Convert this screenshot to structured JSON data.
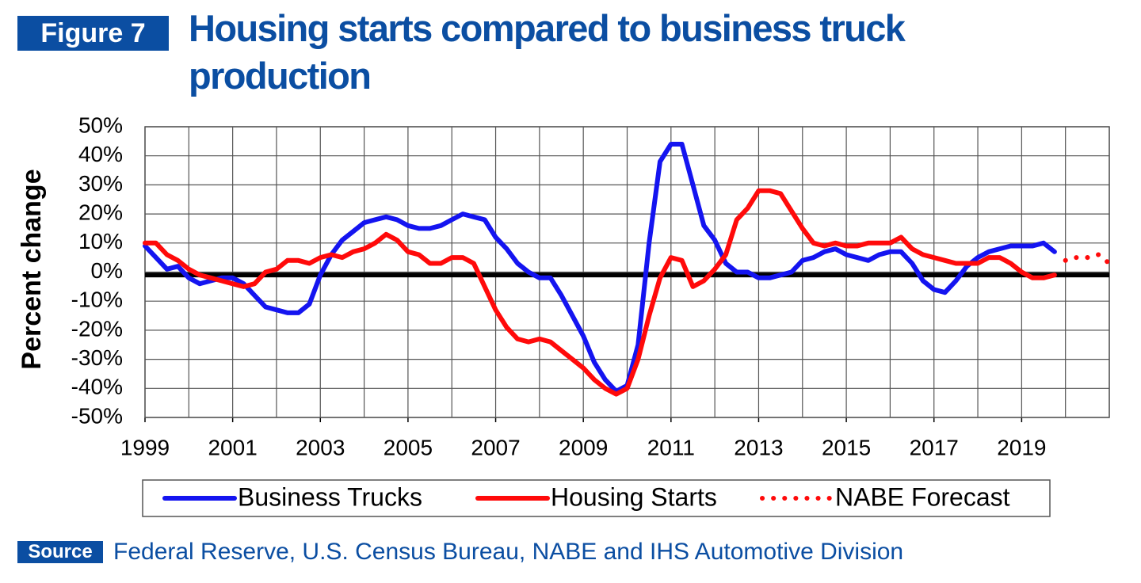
{
  "figure_label": "Figure 7",
  "chart_data": {
    "type": "line",
    "title": "Housing starts compared to business truck production",
    "ylabel": "Percent change",
    "xlim": [
      1999,
      2021
    ],
    "xticks": [
      1999,
      2001,
      2003,
      2005,
      2007,
      2009,
      2011,
      2013,
      2015,
      2017,
      2019
    ],
    "xminorticks": [
      2000,
      2002,
      2004,
      2006,
      2008,
      2010,
      2012,
      2014,
      2016,
      2018,
      2020,
      2021
    ],
    "ylim": [
      -50,
      50
    ],
    "yticks": [
      {
        "value": -50,
        "label": "-50%"
      },
      {
        "value": -40,
        "label": "-40%"
      },
      {
        "value": -30,
        "label": "-30%"
      },
      {
        "value": -20,
        "label": "-20%"
      },
      {
        "value": -10,
        "label": "-10%"
      },
      {
        "value": 0,
        "label": "0%"
      },
      {
        "value": 10,
        "label": "10%"
      },
      {
        "value": 20,
        "label": "20%"
      },
      {
        "value": 30,
        "label": "30%"
      },
      {
        "value": 40,
        "label": "40%"
      },
      {
        "value": 50,
        "label": "50%"
      }
    ],
    "grid": true,
    "hline": -1,
    "legend": "bottom",
    "series": [
      {
        "name": "Business Trucks",
        "color": "#1414f0",
        "style": "solid",
        "x": [
          1999,
          1999.25,
          1999.5,
          1999.75,
          2000,
          2000.25,
          2000.5,
          2000.75,
          2001,
          2001.25,
          2001.5,
          2001.75,
          2002,
          2002.25,
          2002.5,
          2002.75,
          2003,
          2003.25,
          2003.5,
          2003.75,
          2004,
          2004.25,
          2004.5,
          2004.75,
          2005,
          2005.25,
          2005.5,
          2005.75,
          2006,
          2006.25,
          2006.5,
          2006.75,
          2007,
          2007.25,
          2007.5,
          2007.75,
          2008,
          2008.25,
          2008.5,
          2008.75,
          2009,
          2009.25,
          2009.5,
          2009.75,
          2010,
          2010.25,
          2010.5,
          2010.75,
          2011,
          2011.25,
          2011.5,
          2011.75,
          2012,
          2012.25,
          2012.5,
          2012.75,
          2013,
          2013.25,
          2013.5,
          2013.75,
          2014,
          2014.25,
          2014.5,
          2014.75,
          2015,
          2015.25,
          2015.5,
          2015.75,
          2016,
          2016.25,
          2016.5,
          2016.75,
          2017,
          2017.25,
          2017.5,
          2017.75,
          2018,
          2018.25,
          2018.5,
          2018.75,
          2019,
          2019.25,
          2019.5,
          2019.75
        ],
        "values": [
          9,
          5,
          1,
          2,
          -2,
          -4,
          -3,
          -2,
          -2,
          -4,
          -8,
          -12,
          -13,
          -14,
          -14,
          -11,
          -1,
          6,
          11,
          14,
          17,
          18,
          19,
          18,
          16,
          15,
          15,
          16,
          18,
          20,
          19,
          18,
          12,
          8,
          3,
          0,
          -2,
          -2,
          -8,
          -15,
          -22,
          -31,
          -37,
          -41,
          -39,
          -25,
          10,
          38,
          44,
          44,
          30,
          16,
          11,
          3,
          0,
          0,
          -2,
          -2,
          -1,
          0,
          4,
          5,
          7,
          8,
          6,
          5,
          4,
          6,
          7,
          7,
          3,
          -3,
          -6,
          -7,
          -3,
          2,
          5,
          7,
          8,
          9,
          9,
          9,
          10,
          7
        ]
      },
      {
        "name": "Housing Starts",
        "color": "#ff0a0a",
        "style": "solid",
        "x": [
          1999,
          1999.25,
          1999.5,
          1999.75,
          2000,
          2000.25,
          2000.5,
          2000.75,
          2001,
          2001.25,
          2001.5,
          2001.75,
          2002,
          2002.25,
          2002.5,
          2002.75,
          2003,
          2003.25,
          2003.5,
          2003.75,
          2004,
          2004.25,
          2004.5,
          2004.75,
          2005,
          2005.25,
          2005.5,
          2005.75,
          2006,
          2006.25,
          2006.5,
          2006.75,
          2007,
          2007.25,
          2007.5,
          2007.75,
          2008,
          2008.25,
          2008.5,
          2008.75,
          2009,
          2009.25,
          2009.5,
          2009.75,
          2010,
          2010.25,
          2010.5,
          2010.75,
          2011,
          2011.25,
          2011.5,
          2011.75,
          2012,
          2012.25,
          2012.5,
          2012.75,
          2013,
          2013.25,
          2013.5,
          2013.75,
          2014,
          2014.25,
          2014.5,
          2014.75,
          2015,
          2015.25,
          2015.5,
          2015.75,
          2016,
          2016.25,
          2016.5,
          2016.75,
          2017,
          2017.25,
          2017.5,
          2017.75,
          2018,
          2018.25,
          2018.5,
          2018.75,
          2019,
          2019.25,
          2019.5,
          2019.75
        ],
        "values": [
          10,
          10,
          6,
          4,
          1,
          -1,
          -2,
          -3,
          -4,
          -5,
          -4,
          0,
          1,
          4,
          4,
          3,
          5,
          6,
          5,
          7,
          8,
          10,
          13,
          11,
          7,
          6,
          3,
          3,
          5,
          5,
          3,
          -5,
          -13,
          -19,
          -23,
          -24,
          -23,
          -24,
          -27,
          -30,
          -33,
          -37,
          -40,
          -42,
          -40,
          -30,
          -15,
          -2,
          5,
          4,
          -5,
          -3,
          1,
          6,
          18,
          22,
          28,
          28,
          27,
          21,
          15,
          10,
          9,
          10,
          9,
          9,
          10,
          10,
          10,
          12,
          8,
          6,
          5,
          4,
          3,
          3,
          3,
          5,
          5,
          3,
          0,
          -2,
          -2,
          -1
        ]
      },
      {
        "name": "NABE Forecast",
        "color": "#ff0a0a",
        "style": "dotted",
        "x": [
          2020,
          2020.25,
          2020.5,
          2020.75,
          2021
        ],
        "values": [
          4,
          5,
          5,
          6,
          3
        ]
      }
    ]
  },
  "source_label": "Source",
  "source": "Federal Reserve, U.S. Census Bureau, NABE and IHS Automotive Division"
}
